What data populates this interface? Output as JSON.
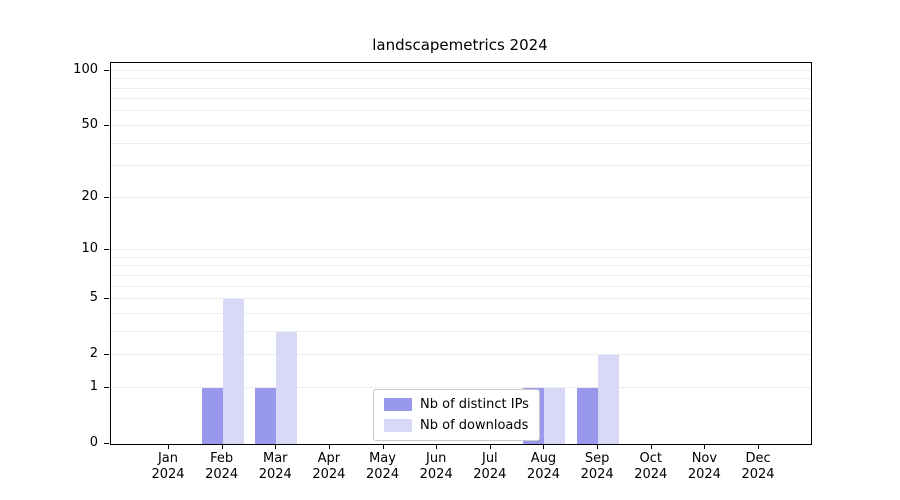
{
  "title": "landscapemetrics 2024",
  "chart_data": {
    "type": "bar",
    "scale": "log1p",
    "title": "landscapemetrics 2024",
    "categories": [
      "Jan",
      "Feb",
      "Mar",
      "Apr",
      "May",
      "Jun",
      "Jul",
      "Aug",
      "Sep",
      "Oct",
      "Nov",
      "Dec"
    ],
    "year": "2024",
    "series": [
      {
        "name": "Nb of distinct IPs",
        "color": "#9898ec",
        "values": [
          0,
          1,
          1,
          0,
          0,
          0,
          0,
          1,
          1,
          0,
          0,
          0
        ]
      },
      {
        "name": "Nb of downloads",
        "color": "#d8d8f7",
        "values": [
          0,
          5,
          3,
          0,
          0,
          0,
          0,
          1,
          2,
          0,
          0,
          0
        ]
      }
    ],
    "y_ticks": [
      0,
      1,
      2,
      5,
      10,
      20,
      50,
      100
    ],
    "grid_values": [
      1,
      2,
      3,
      4,
      5,
      6,
      7,
      8,
      9,
      10,
      20,
      30,
      40,
      50,
      60,
      70,
      80,
      90,
      100
    ],
    "ylim_top": 110,
    "legend": [
      "Nb of distinct IPs",
      "Nb of downloads"
    ],
    "legend_position": "bottom-center",
    "grid": true
  }
}
